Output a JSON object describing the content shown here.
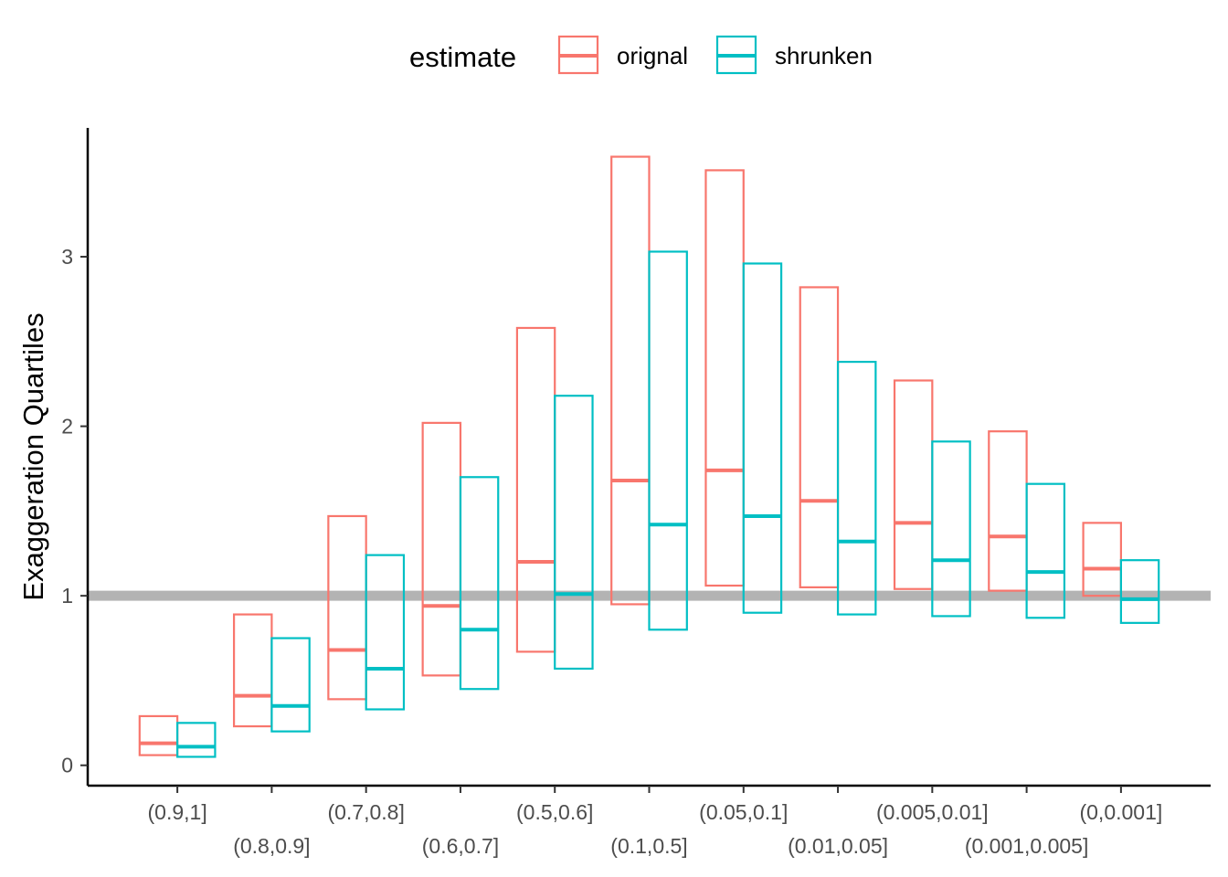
{
  "chart_data": {
    "type": "crossbar",
    "ylabel": "Exaggeration Quartiles",
    "xlabel": "",
    "title": "",
    "ylim": [
      -0.12,
      3.76
    ],
    "yticks": [
      0,
      1,
      2,
      3
    ],
    "grid": false,
    "reference_line": {
      "y": 1,
      "color": "#b3b3b3"
    },
    "legend": {
      "title": "estimate",
      "position": "top",
      "entries": [
        {
          "label": "orignal",
          "color": "#F8766D"
        },
        {
          "label": "shrunken",
          "color": "#00BFC4"
        }
      ]
    },
    "categories": [
      "(0.9,1]",
      "(0.8,0.9]",
      "(0.7,0.8]",
      "(0.6,0.7]",
      "(0.5,0.6]",
      "(0.1,0.5]",
      "(0.05,0.1]",
      "(0.01,0.05]",
      "(0.005,0.01]",
      "(0.001,0.005]",
      "(0,0.001]"
    ],
    "series": [
      {
        "name": "orignal",
        "color": "#F8766D",
        "q1": [
          0.06,
          0.23,
          0.39,
          0.53,
          0.67,
          0.95,
          1.06,
          1.05,
          1.04,
          1.03,
          1.0
        ],
        "median": [
          0.13,
          0.41,
          0.68,
          0.94,
          1.2,
          1.68,
          1.74,
          1.56,
          1.43,
          1.35,
          1.16
        ],
        "q3": [
          0.29,
          0.89,
          1.47,
          2.02,
          2.58,
          3.59,
          3.51,
          2.82,
          2.27,
          1.97,
          1.43
        ]
      },
      {
        "name": "shrunken",
        "color": "#00BFC4",
        "q1": [
          0.05,
          0.2,
          0.33,
          0.45,
          0.57,
          0.8,
          0.9,
          0.89,
          0.88,
          0.87,
          0.84
        ],
        "median": [
          0.11,
          0.35,
          0.57,
          0.8,
          1.01,
          1.42,
          1.47,
          1.32,
          1.21,
          1.14,
          0.98
        ],
        "q3": [
          0.25,
          0.75,
          1.24,
          1.7,
          2.18,
          3.03,
          2.96,
          2.38,
          1.91,
          1.66,
          1.21
        ]
      }
    ]
  }
}
